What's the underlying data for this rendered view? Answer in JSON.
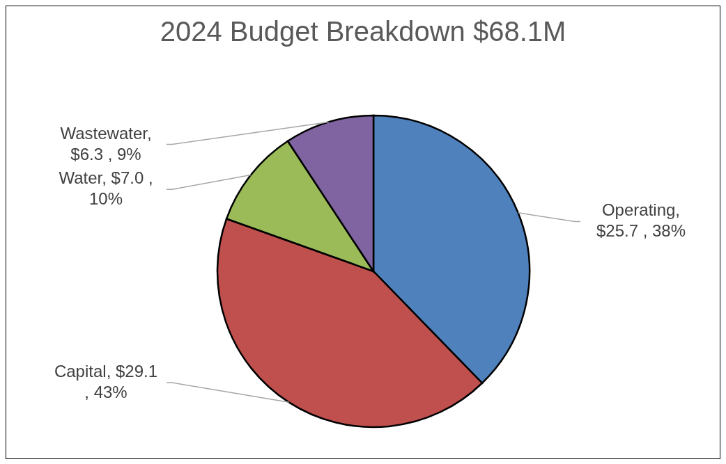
{
  "chart_data": {
    "type": "pie",
    "title": "2024 Budget Breakdown $68.1M",
    "categories": [
      "Operating",
      "Capital",
      "Water",
      "Wastewater"
    ],
    "values": [
      25.7,
      29.1,
      7.0,
      6.3
    ],
    "colors": [
      "#4f81bd",
      "#c0504d",
      "#9bbb59",
      "#8064a2"
    ],
    "value_labels": [
      ", $25.7 , 38%",
      ", $29.1 , 43%",
      ", $7.0 , 10%",
      ", $6.3 , 9%"
    ],
    "legend": false
  }
}
